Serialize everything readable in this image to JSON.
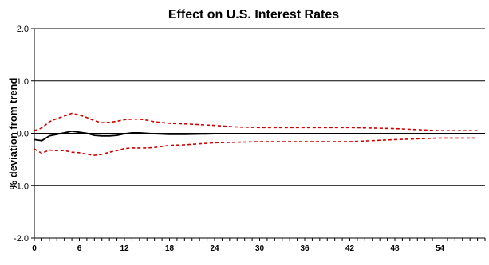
{
  "chart_data": {
    "type": "line",
    "title": "Effect on U.S. Interest Rates",
    "xlabel": "",
    "ylabel": "% deviation from trend",
    "xlim": [
      0,
      60
    ],
    "ylim": [
      -2.0,
      2.0
    ],
    "y_ticks": [
      -2.0,
      -1.0,
      0.0,
      1.0,
      2.0
    ],
    "y_tick_labels": [
      "-2.0",
      "-1.0",
      "0.0",
      "1.0",
      "2.0"
    ],
    "x_ticks": [
      0,
      6,
      12,
      18,
      24,
      30,
      36,
      42,
      48,
      54
    ],
    "x_tick_labels": [
      "0",
      "6",
      "12",
      "18",
      "24",
      "30",
      "36",
      "42",
      "48",
      "54"
    ],
    "grid": "horizontal",
    "legend": "none",
    "series": [
      {
        "style": "solid",
        "color": "#000000",
        "x": [
          0,
          1,
          2,
          3,
          4,
          5,
          6,
          7,
          8,
          9,
          10,
          11,
          12,
          13,
          14,
          15,
          16,
          18,
          20,
          24,
          30,
          36,
          42,
          48,
          54,
          59
        ],
        "y": [
          -0.12,
          -0.14,
          -0.05,
          -0.02,
          0.01,
          0.04,
          0.02,
          0.0,
          -0.04,
          -0.05,
          -0.05,
          -0.04,
          -0.01,
          0.01,
          0.01,
          0.0,
          -0.01,
          -0.02,
          -0.02,
          -0.01,
          -0.01,
          -0.01,
          -0.01,
          -0.01,
          -0.01,
          -0.01
        ]
      },
      {
        "style": "dashed",
        "color": "#cc0000",
        "x": [
          0,
          1,
          2,
          3,
          4,
          5,
          6,
          7,
          8,
          9,
          10,
          11,
          12,
          13,
          14,
          15,
          16,
          18,
          20,
          24,
          27,
          30,
          36,
          42,
          48,
          54,
          59
        ],
        "y": [
          0.05,
          0.1,
          0.22,
          0.28,
          0.33,
          0.38,
          0.35,
          0.3,
          0.24,
          0.2,
          0.21,
          0.23,
          0.26,
          0.27,
          0.27,
          0.25,
          0.22,
          0.19,
          0.18,
          0.15,
          0.12,
          0.11,
          0.11,
          0.11,
          0.09,
          0.05,
          0.05
        ]
      },
      {
        "style": "dashed",
        "color": "#cc0000",
        "x": [
          0,
          1,
          2,
          3,
          4,
          5,
          6,
          7,
          8,
          9,
          10,
          11,
          12,
          13,
          14,
          15,
          16,
          18,
          20,
          24,
          27,
          30,
          36,
          42,
          48,
          54,
          59
        ],
        "y": [
          -0.3,
          -0.38,
          -0.32,
          -0.33,
          -0.33,
          -0.36,
          -0.37,
          -0.4,
          -0.42,
          -0.4,
          -0.36,
          -0.33,
          -0.29,
          -0.28,
          -0.28,
          -0.28,
          -0.27,
          -0.23,
          -0.22,
          -0.18,
          -0.17,
          -0.16,
          -0.16,
          -0.16,
          -0.12,
          -0.09,
          -0.09
        ]
      }
    ]
  }
}
